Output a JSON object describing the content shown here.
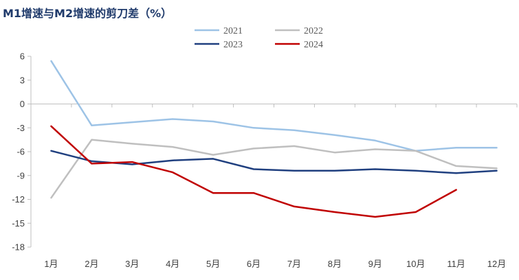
{
  "chart_data": {
    "type": "line",
    "title": "M1增速与M2增速的剪刀差（%）",
    "categories": [
      "1月",
      "2月",
      "3月",
      "4月",
      "5月",
      "6月",
      "7月",
      "8月",
      "9月",
      "10月",
      "11月",
      "12月"
    ],
    "ylim": [
      -18,
      6
    ],
    "yticks": [
      "6",
      "3",
      "0",
      "-3",
      "-6",
      "-9",
      "-12",
      "-15",
      "-18"
    ],
    "ytick_values": [
      6,
      3,
      0,
      -3,
      -6,
      -9,
      -12,
      -15,
      -18
    ],
    "grid": false,
    "legend": "top-center",
    "series": [
      {
        "name": "2021",
        "color": "#9dc3e6",
        "values": [
          5.4,
          -2.7,
          -2.3,
          -1.9,
          -2.2,
          -3.0,
          -3.3,
          -3.9,
          -4.6,
          -5.9,
          -5.5,
          -5.5
        ]
      },
      {
        "name": "2022",
        "color": "#bfbfbf",
        "values": [
          -11.8,
          -4.5,
          -5.0,
          -5.4,
          -6.4,
          -5.6,
          -5.3,
          -6.1,
          -5.7,
          -5.9,
          -7.8,
          -8.1
        ]
      },
      {
        "name": "2023",
        "color": "#1f3f7f",
        "values": [
          -5.9,
          -7.2,
          -7.6,
          -7.1,
          -6.9,
          -8.2,
          -8.4,
          -8.4,
          -8.2,
          -8.4,
          -8.7,
          -8.4
        ]
      },
      {
        "name": "2024",
        "color": "#c00000",
        "values": [
          -2.8,
          -7.5,
          -7.3,
          -8.6,
          -11.2,
          -11.2,
          -12.9,
          -13.6,
          -14.2,
          -13.6,
          -10.8,
          null
        ]
      }
    ]
  }
}
